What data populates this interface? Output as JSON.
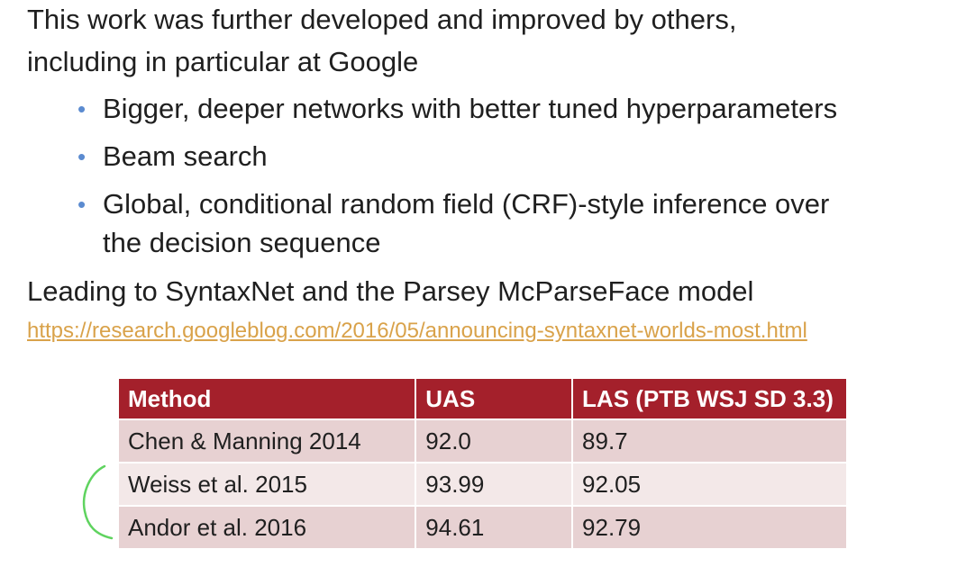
{
  "intro": {
    "line1": "This work was further developed and improved by others,",
    "line2": "including in particular at Google"
  },
  "bullets": [
    {
      "text": "Bigger, deeper networks with better tuned hyperparameters"
    },
    {
      "text": "Beam search"
    },
    {
      "text": "Global, conditional random field (CRF)-style inference over",
      "continuation": "the decision sequence"
    }
  ],
  "bullet_glyph": "•",
  "leading": "Leading to SyntaxNet and the Parsey McParseFace model",
  "link": "https://research.googleblog.com/2016/05/announcing-syntaxnet-worlds-most.html",
  "table": {
    "headers": [
      "Method",
      "UAS",
      "LAS (PTB WSJ SD 3.3)"
    ],
    "rows": [
      [
        "Chen & Manning 2014",
        "92.0",
        "89.7"
      ],
      [
        "Weiss et al. 2015",
        "93.99",
        "92.05"
      ],
      [
        "Andor et al. 2016",
        "94.61",
        "92.79"
      ]
    ]
  },
  "colors": {
    "header_bg": "#a4202b",
    "row_odd": "#e7d1d2",
    "row_even": "#f3e8e8",
    "link": "#d9a24a",
    "bullet": "#5b8bd0",
    "annotation": "#5fd35f"
  }
}
